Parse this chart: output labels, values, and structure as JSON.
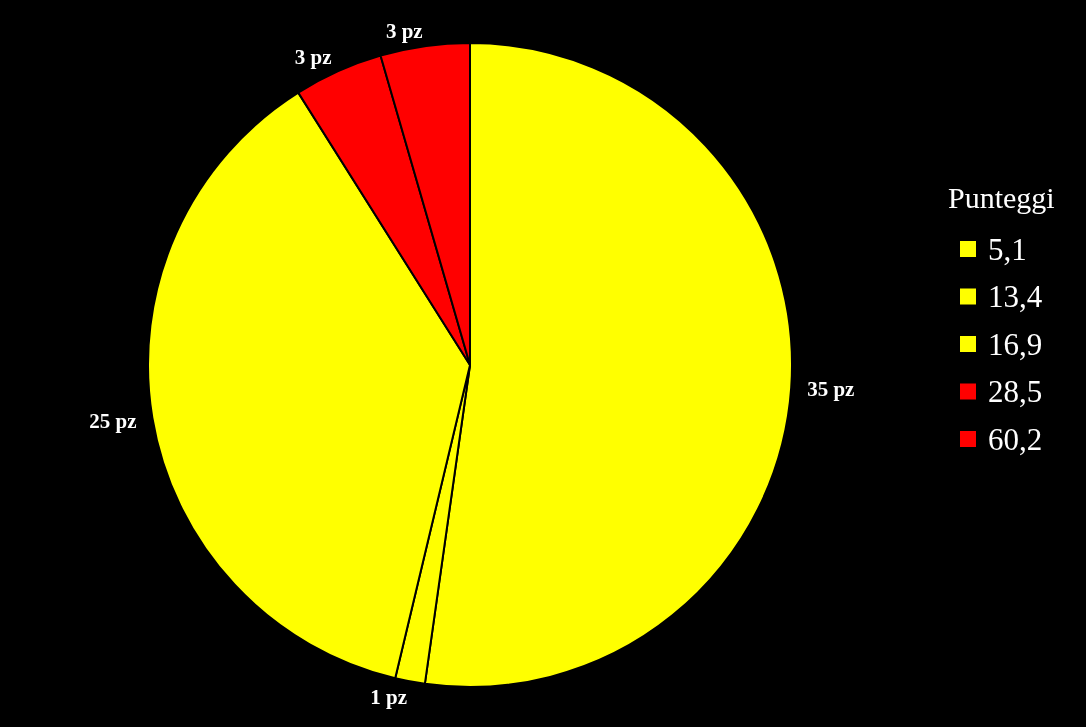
{
  "chart_data": {
    "type": "pie",
    "legend_title": "Punteggi",
    "legend": "right",
    "categories": [
      "5,1",
      "13,4",
      "16,9",
      "28,5",
      "60,2"
    ],
    "values": [
      35,
      1,
      25,
      3,
      3
    ],
    "value_labels": [
      "35 pz",
      "1 pz",
      "25 pz",
      "3 pz",
      "3 pz"
    ],
    "colors": [
      "#ffff00",
      "#ffff00",
      "#ffff00",
      "#ff0000",
      "#ff0000"
    ]
  }
}
